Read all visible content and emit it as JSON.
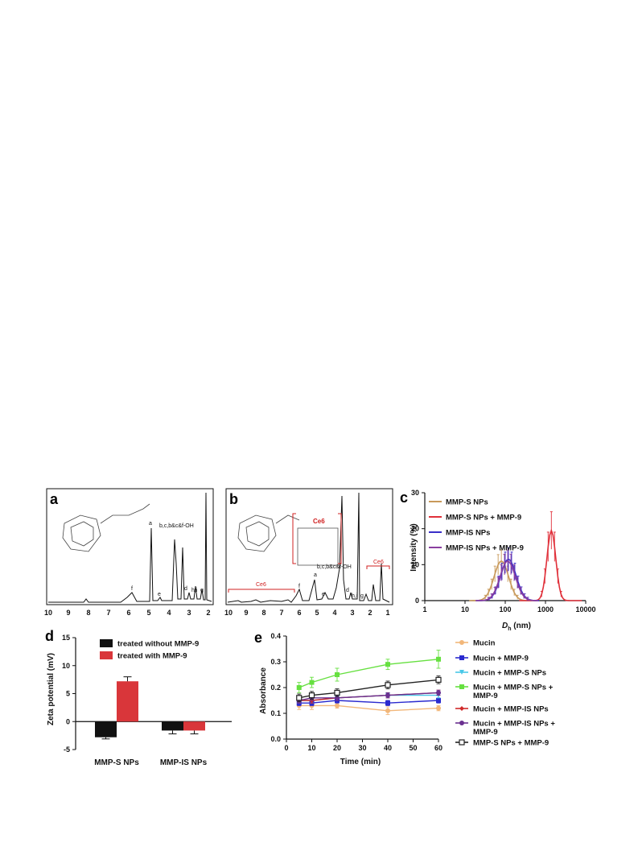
{
  "panels": {
    "a": {
      "label": "a",
      "x_ticks": [
        "10",
        "9",
        "8",
        "7",
        "6",
        "5",
        "4",
        "3",
        "2"
      ],
      "peak_labels": [
        "f",
        "a",
        "e",
        "b,c,b&c&f-OH",
        "d",
        "h,i",
        "g"
      ]
    },
    "b": {
      "label": "b",
      "x_ticks": [
        "10",
        "9",
        "8",
        "7",
        "6",
        "5",
        "4",
        "3",
        "2",
        "1"
      ],
      "peak_labels": [
        "f",
        "a",
        "e",
        "b,c,b&c&f-OH",
        "d",
        "h,i",
        "g"
      ],
      "ce6_labels": [
        "Ce6",
        "Ce6",
        "Ce6"
      ]
    },
    "c": {
      "label": "c",
      "xlabel_main": "D",
      "xlabel_sub": "h",
      "xlabel_unit": " (nm)",
      "ylabel": "Intensity (%)",
      "x_ticks": [
        "1",
        "10",
        "100",
        "1000",
        "10000"
      ],
      "y_ticks": [
        "0",
        "10",
        "20",
        "30"
      ]
    },
    "d": {
      "label": "d",
      "ylabel": "Zeta potential (mV)",
      "y_ticks": [
        "-5",
        "0",
        "5",
        "10",
        "15"
      ]
    },
    "e": {
      "label": "e",
      "xlabel": "Time (min)",
      "ylabel": "Absorbance",
      "x_ticks": [
        "0",
        "10",
        "20",
        "30",
        "40",
        "50",
        "60"
      ],
      "y_ticks": [
        "0.0",
        "0.1",
        "0.2",
        "0.3",
        "0.4"
      ]
    }
  },
  "chart_data": [
    {
      "type": "line",
      "panel": "c",
      "xlabel": "Dh (nm)",
      "ylabel": "Intensity (%)",
      "xscale": "log",
      "xlim": [
        1,
        10000
      ],
      "ylim": [
        0,
        30
      ],
      "legend_position": "top-right",
      "series": [
        {
          "name": "MMP-S NPs",
          "color": "#c8995a",
          "peak_x": 80,
          "peak_y": 11,
          "log_sigma": 0.18
        },
        {
          "name": "MMP-S NPs + MMP-9",
          "color": "#e0303a",
          "peak_x": 1400,
          "peak_y": 19.5,
          "log_sigma": 0.11
        },
        {
          "name": "MMP-IS NPs",
          "color": "#3a2fc8",
          "peak_x": 120,
          "peak_y": 11.5,
          "log_sigma": 0.19
        },
        {
          "name": "MMP-IS NPs + MMP-9",
          "color": "#8a3fa0",
          "peak_x": 115,
          "peak_y": 11,
          "log_sigma": 0.19
        }
      ]
    },
    {
      "type": "bar",
      "panel": "d",
      "ylabel": "Zeta potential (mV)",
      "ylim": [
        -5,
        15
      ],
      "categories": [
        "MMP-S NPs",
        "MMP-IS NPs"
      ],
      "legend_position": "top",
      "series": [
        {
          "name": "treated without MMP-9",
          "color": "#111111",
          "values": [
            -2.8,
            -1.6
          ],
          "errors": [
            0.3,
            0.6
          ]
        },
        {
          "name": "treated with MMP-9",
          "color": "#d9363a",
          "values": [
            7.2,
            -1.6
          ],
          "errors": [
            0.8,
            0.6
          ]
        }
      ]
    },
    {
      "type": "line",
      "panel": "e",
      "xlabel": "Time (min)",
      "ylabel": "Absorbance",
      "xlim": [
        0,
        60
      ],
      "ylim": [
        0.0,
        0.4
      ],
      "x": [
        5,
        10,
        20,
        40,
        60
      ],
      "legend_position": "right",
      "series": [
        {
          "name": "Mucin",
          "color": "#f2b77a",
          "marker": "o",
          "values": [
            0.13,
            0.13,
            0.13,
            0.11,
            0.12
          ],
          "errors": [
            0.015,
            0.015,
            0.01,
            0.015,
            0.01
          ]
        },
        {
          "name": "Mucin + MMP-9",
          "color": "#2a2acf",
          "marker": "s",
          "values": [
            0.14,
            0.14,
            0.15,
            0.14,
            0.15
          ],
          "errors": [
            0.01,
            0.01,
            0.01,
            0.01,
            0.01
          ]
        },
        {
          "name": "Mucin + MMP-S NPs",
          "color": "#49c8e8",
          "marker": "v",
          "values": [
            0.15,
            0.15,
            0.16,
            0.17,
            0.17
          ],
          "errors": [
            0.01,
            0.01,
            0.01,
            0.01,
            0.01
          ]
        },
        {
          "name": "Mucin + MMP-S NPs + MMP-9",
          "color": "#66e040",
          "marker": "s",
          "values": [
            0.2,
            0.22,
            0.25,
            0.29,
            0.31
          ],
          "errors": [
            0.02,
            0.02,
            0.025,
            0.02,
            0.035
          ]
        },
        {
          "name": "Mucin + MMP-IS NPs",
          "color": "#d02a2a",
          "marker": "d",
          "values": [
            0.15,
            0.15,
            0.16,
            0.17,
            0.18
          ],
          "errors": [
            0.01,
            0.01,
            0.01,
            0.01,
            0.01
          ]
        },
        {
          "name": "Mucin + MMP-IS NPs + MMP-9",
          "color": "#6a3090",
          "marker": "o",
          "values": [
            0.15,
            0.16,
            0.16,
            0.17,
            0.18
          ],
          "errors": [
            0.01,
            0.01,
            0.01,
            0.01,
            0.01
          ]
        },
        {
          "name": "MMP-S NPs + MMP-9",
          "color": "#222222",
          "marker": "s-open",
          "values": [
            0.16,
            0.17,
            0.18,
            0.21,
            0.23
          ],
          "errors": [
            0.015,
            0.015,
            0.015,
            0.015,
            0.015
          ]
        }
      ]
    }
  ]
}
